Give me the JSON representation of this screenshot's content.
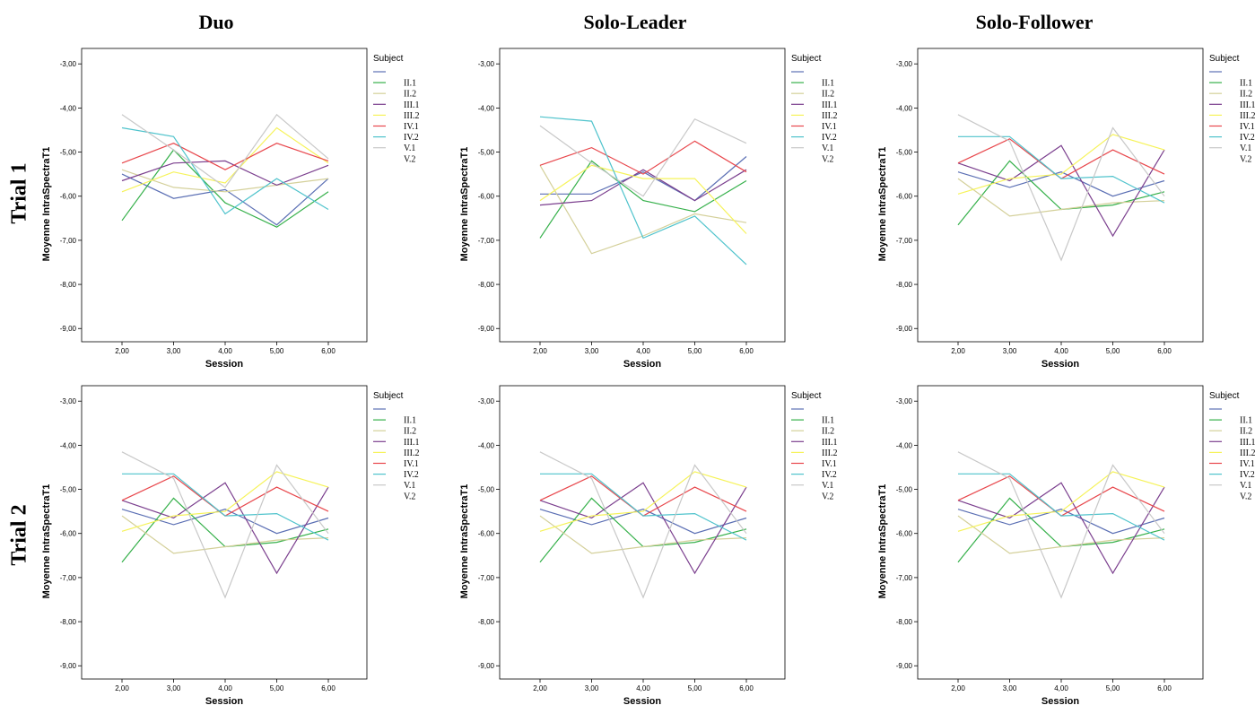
{
  "column_titles": [
    "Duo",
    "Solo-Leader",
    "Solo-Follower"
  ],
  "row_titles": [
    "Trial 1",
    "Trial 2"
  ],
  "legend": {
    "title": "Subject",
    "entries": [
      "",
      "II.1",
      "II.2",
      "III.1",
      "III.2",
      "IV.1",
      "IV.2",
      "V.1",
      "V.2"
    ],
    "colors": [
      "#5b6fb4",
      "#35b04a",
      "#d4d09a",
      "#7b3f8e",
      "#f6f35a",
      "#e8474c",
      "#4fc3cc",
      "#c8c8c8",
      "#ffffff"
    ]
  },
  "chart_data": [
    {
      "type": "line",
      "title": "Duo – Trial 1",
      "xlabel": "Session",
      "ylabel": "Moyenne IntraSpectraT1",
      "x": [
        "2,00",
        "3,00",
        "4,00",
        "5,00",
        "6,00"
      ],
      "y_ticks": [
        "-3,00",
        "-4,00",
        "-5,00",
        "-6,00",
        "-7,00",
        "-8,00",
        "-9,00"
      ],
      "ylim": [
        -9.3,
        -2.65
      ],
      "series": [
        {
          "name": "",
          "values": [
            -5.5,
            -6.05,
            -5.85,
            -6.65,
            -5.6
          ]
        },
        {
          "name": "II.1",
          "values": [
            -6.55,
            -4.95,
            -6.15,
            -6.7,
            -5.9
          ]
        },
        {
          "name": "II.2",
          "values": [
            -5.4,
            -5.8,
            -5.9,
            -5.75,
            -5.6
          ]
        },
        {
          "name": "III.1",
          "values": [
            -5.65,
            -5.25,
            -5.2,
            -5.75,
            -5.3
          ]
        },
        {
          "name": "III.2",
          "values": [
            -5.9,
            -5.45,
            -5.7,
            -4.45,
            -5.25
          ]
        },
        {
          "name": "IV.1",
          "values": [
            -5.25,
            -4.8,
            -5.4,
            -4.8,
            -5.2
          ]
        },
        {
          "name": "IV.2",
          "values": [
            -4.45,
            -4.65,
            -6.4,
            -5.6,
            -6.3
          ]
        },
        {
          "name": "V.1",
          "values": [
            -4.15,
            -4.95,
            -5.8,
            -4.15,
            -5.15
          ]
        }
      ]
    },
    {
      "type": "line",
      "title": "Solo-Leader – Trial 1",
      "xlabel": "Session",
      "ylabel": "Moyenne IntraSpectraT1",
      "x": [
        "2,00",
        "3,00",
        "4,00",
        "5,00",
        "6,00"
      ],
      "y_ticks": [
        "-3,00",
        "-4,00",
        "-5,00",
        "-6,00",
        "-7,00",
        "-8,00",
        "-9,00"
      ],
      "ylim": [
        -9.3,
        -2.65
      ],
      "series": [
        {
          "name": "",
          "values": [
            -5.95,
            -5.95,
            -5.45,
            -6.1,
            -5.1
          ]
        },
        {
          "name": "II.1",
          "values": [
            -6.95,
            -5.2,
            -6.1,
            -6.35,
            -5.65
          ]
        },
        {
          "name": "II.2",
          "values": [
            -5.3,
            -7.3,
            -6.9,
            -6.4,
            -6.6
          ]
        },
        {
          "name": "III.1",
          "values": [
            -6.2,
            -6.1,
            -5.4,
            -6.1,
            -5.4
          ]
        },
        {
          "name": "III.2",
          "values": [
            -6.1,
            -5.3,
            -5.6,
            -5.6,
            -6.85
          ]
        },
        {
          "name": "IV.1",
          "values": [
            -5.3,
            -4.9,
            -5.5,
            -4.75,
            -5.45
          ]
        },
        {
          "name": "IV.2",
          "values": [
            -4.2,
            -4.3,
            -6.95,
            -6.45,
            -7.55
          ]
        },
        {
          "name": "V.1",
          "values": [
            -4.4,
            -5.25,
            -6.0,
            -4.25,
            -4.8
          ]
        }
      ]
    },
    {
      "type": "line",
      "title": "Solo-Follower – Trial 1",
      "xlabel": "Session",
      "ylabel": "Moyenne IntraSpectraT1",
      "x": [
        "2,00",
        "3,00",
        "4,00",
        "5,00",
        "6,00"
      ],
      "y_ticks": [
        "-3,00",
        "-4,00",
        "-5,00",
        "-6,00",
        "-7,00",
        "-8,00",
        "-9,00"
      ],
      "ylim": [
        -9.3,
        -2.65
      ],
      "series": [
        {
          "name": "",
          "values": [
            -5.45,
            -5.8,
            -5.45,
            -6.0,
            -5.65
          ]
        },
        {
          "name": "II.1",
          "values": [
            -6.65,
            -5.2,
            -6.3,
            -6.2,
            -5.9
          ]
        },
        {
          "name": "II.2",
          "values": [
            -5.6,
            -6.45,
            -6.3,
            -6.15,
            -6.1
          ]
        },
        {
          "name": "III.1",
          "values": [
            -5.25,
            -5.65,
            -4.85,
            -6.9,
            -4.95
          ]
        },
        {
          "name": "III.2",
          "values": [
            -5.95,
            -5.6,
            -5.5,
            -4.6,
            -4.95
          ]
        },
        {
          "name": "IV.1",
          "values": [
            -5.25,
            -4.7,
            -5.6,
            -4.95,
            -5.5
          ]
        },
        {
          "name": "IV.2",
          "values": [
            -4.65,
            -4.65,
            -5.6,
            -5.55,
            -6.15
          ]
        },
        {
          "name": "V.1",
          "values": [
            -4.15,
            -4.75,
            -7.45,
            -4.45,
            -6.0
          ]
        }
      ]
    },
    {
      "type": "line",
      "title": "Duo – Trial 2",
      "xlabel": "Session",
      "ylabel": "Moyenne IntraSpectraT1",
      "x": [
        "2,00",
        "3,00",
        "4,00",
        "5,00",
        "6,00"
      ],
      "y_ticks": [
        "-3,00",
        "-4,00",
        "-5,00",
        "-6,00",
        "-7,00",
        "-8,00",
        "-9,00"
      ],
      "ylim": [
        -9.3,
        -2.65
      ],
      "series": [
        {
          "name": "",
          "values": [
            -5.45,
            -5.8,
            -5.45,
            -6.0,
            -5.65
          ]
        },
        {
          "name": "II.1",
          "values": [
            -6.65,
            -5.2,
            -6.3,
            -6.2,
            -5.9
          ]
        },
        {
          "name": "II.2",
          "values": [
            -5.6,
            -6.45,
            -6.3,
            -6.15,
            -6.1
          ]
        },
        {
          "name": "III.1",
          "values": [
            -5.25,
            -5.65,
            -4.85,
            -6.9,
            -4.95
          ]
        },
        {
          "name": "III.2",
          "values": [
            -5.95,
            -5.6,
            -5.5,
            -4.6,
            -4.95
          ]
        },
        {
          "name": "IV.1",
          "values": [
            -5.25,
            -4.7,
            -5.6,
            -4.95,
            -5.5
          ]
        },
        {
          "name": "IV.2",
          "values": [
            -4.65,
            -4.65,
            -5.6,
            -5.55,
            -6.15
          ]
        },
        {
          "name": "V.1",
          "values": [
            -4.15,
            -4.75,
            -7.45,
            -4.45,
            -6.0
          ]
        }
      ]
    },
    {
      "type": "line",
      "title": "Solo-Leader – Trial 2",
      "xlabel": "Session",
      "ylabel": "Moyenne IntraSpectraT1",
      "x": [
        "2,00",
        "3,00",
        "4,00",
        "5,00",
        "6,00"
      ],
      "y_ticks": [
        "-3,00",
        "-4,00",
        "-5,00",
        "-6,00",
        "-7,00",
        "-8,00",
        "-9,00"
      ],
      "ylim": [
        -9.3,
        -2.65
      ],
      "series": [
        {
          "name": "",
          "values": [
            -5.45,
            -5.8,
            -5.45,
            -6.0,
            -5.65
          ]
        },
        {
          "name": "II.1",
          "values": [
            -6.65,
            -5.2,
            -6.3,
            -6.2,
            -5.9
          ]
        },
        {
          "name": "II.2",
          "values": [
            -5.6,
            -6.45,
            -6.3,
            -6.15,
            -6.1
          ]
        },
        {
          "name": "III.1",
          "values": [
            -5.25,
            -5.65,
            -4.85,
            -6.9,
            -4.95
          ]
        },
        {
          "name": "III.2",
          "values": [
            -5.95,
            -5.6,
            -5.5,
            -4.6,
            -4.95
          ]
        },
        {
          "name": "IV.1",
          "values": [
            -5.25,
            -4.7,
            -5.6,
            -4.95,
            -5.5
          ]
        },
        {
          "name": "IV.2",
          "values": [
            -4.65,
            -4.65,
            -5.6,
            -5.55,
            -6.15
          ]
        },
        {
          "name": "V.1",
          "values": [
            -4.15,
            -4.75,
            -7.45,
            -4.45,
            -6.0
          ]
        }
      ]
    },
    {
      "type": "line",
      "title": "Solo-Follower – Trial 2",
      "xlabel": "Session",
      "ylabel": "Moyenne IntraSpectraT1",
      "x": [
        "2,00",
        "3,00",
        "4,00",
        "5,00",
        "6,00"
      ],
      "y_ticks": [
        "-3,00",
        "-4,00",
        "-5,00",
        "-6,00",
        "-7,00",
        "-8,00",
        "-9,00"
      ],
      "ylim": [
        -9.3,
        -2.65
      ],
      "series": [
        {
          "name": "",
          "values": [
            -5.45,
            -5.8,
            -5.45,
            -6.0,
            -5.65
          ]
        },
        {
          "name": "II.1",
          "values": [
            -6.65,
            -5.2,
            -6.3,
            -6.2,
            -5.9
          ]
        },
        {
          "name": "II.2",
          "values": [
            -5.6,
            -6.45,
            -6.3,
            -6.15,
            -6.1
          ]
        },
        {
          "name": "III.1",
          "values": [
            -5.25,
            -5.65,
            -4.85,
            -6.9,
            -4.95
          ]
        },
        {
          "name": "III.2",
          "values": [
            -5.95,
            -5.6,
            -5.5,
            -4.6,
            -4.95
          ]
        },
        {
          "name": "IV.1",
          "values": [
            -5.25,
            -4.7,
            -5.6,
            -4.95,
            -5.5
          ]
        },
        {
          "name": "IV.2",
          "values": [
            -4.65,
            -4.65,
            -5.6,
            -5.55,
            -6.15
          ]
        },
        {
          "name": "V.1",
          "values": [
            -4.15,
            -4.75,
            -7.45,
            -4.45,
            -6.0
          ]
        }
      ]
    }
  ]
}
